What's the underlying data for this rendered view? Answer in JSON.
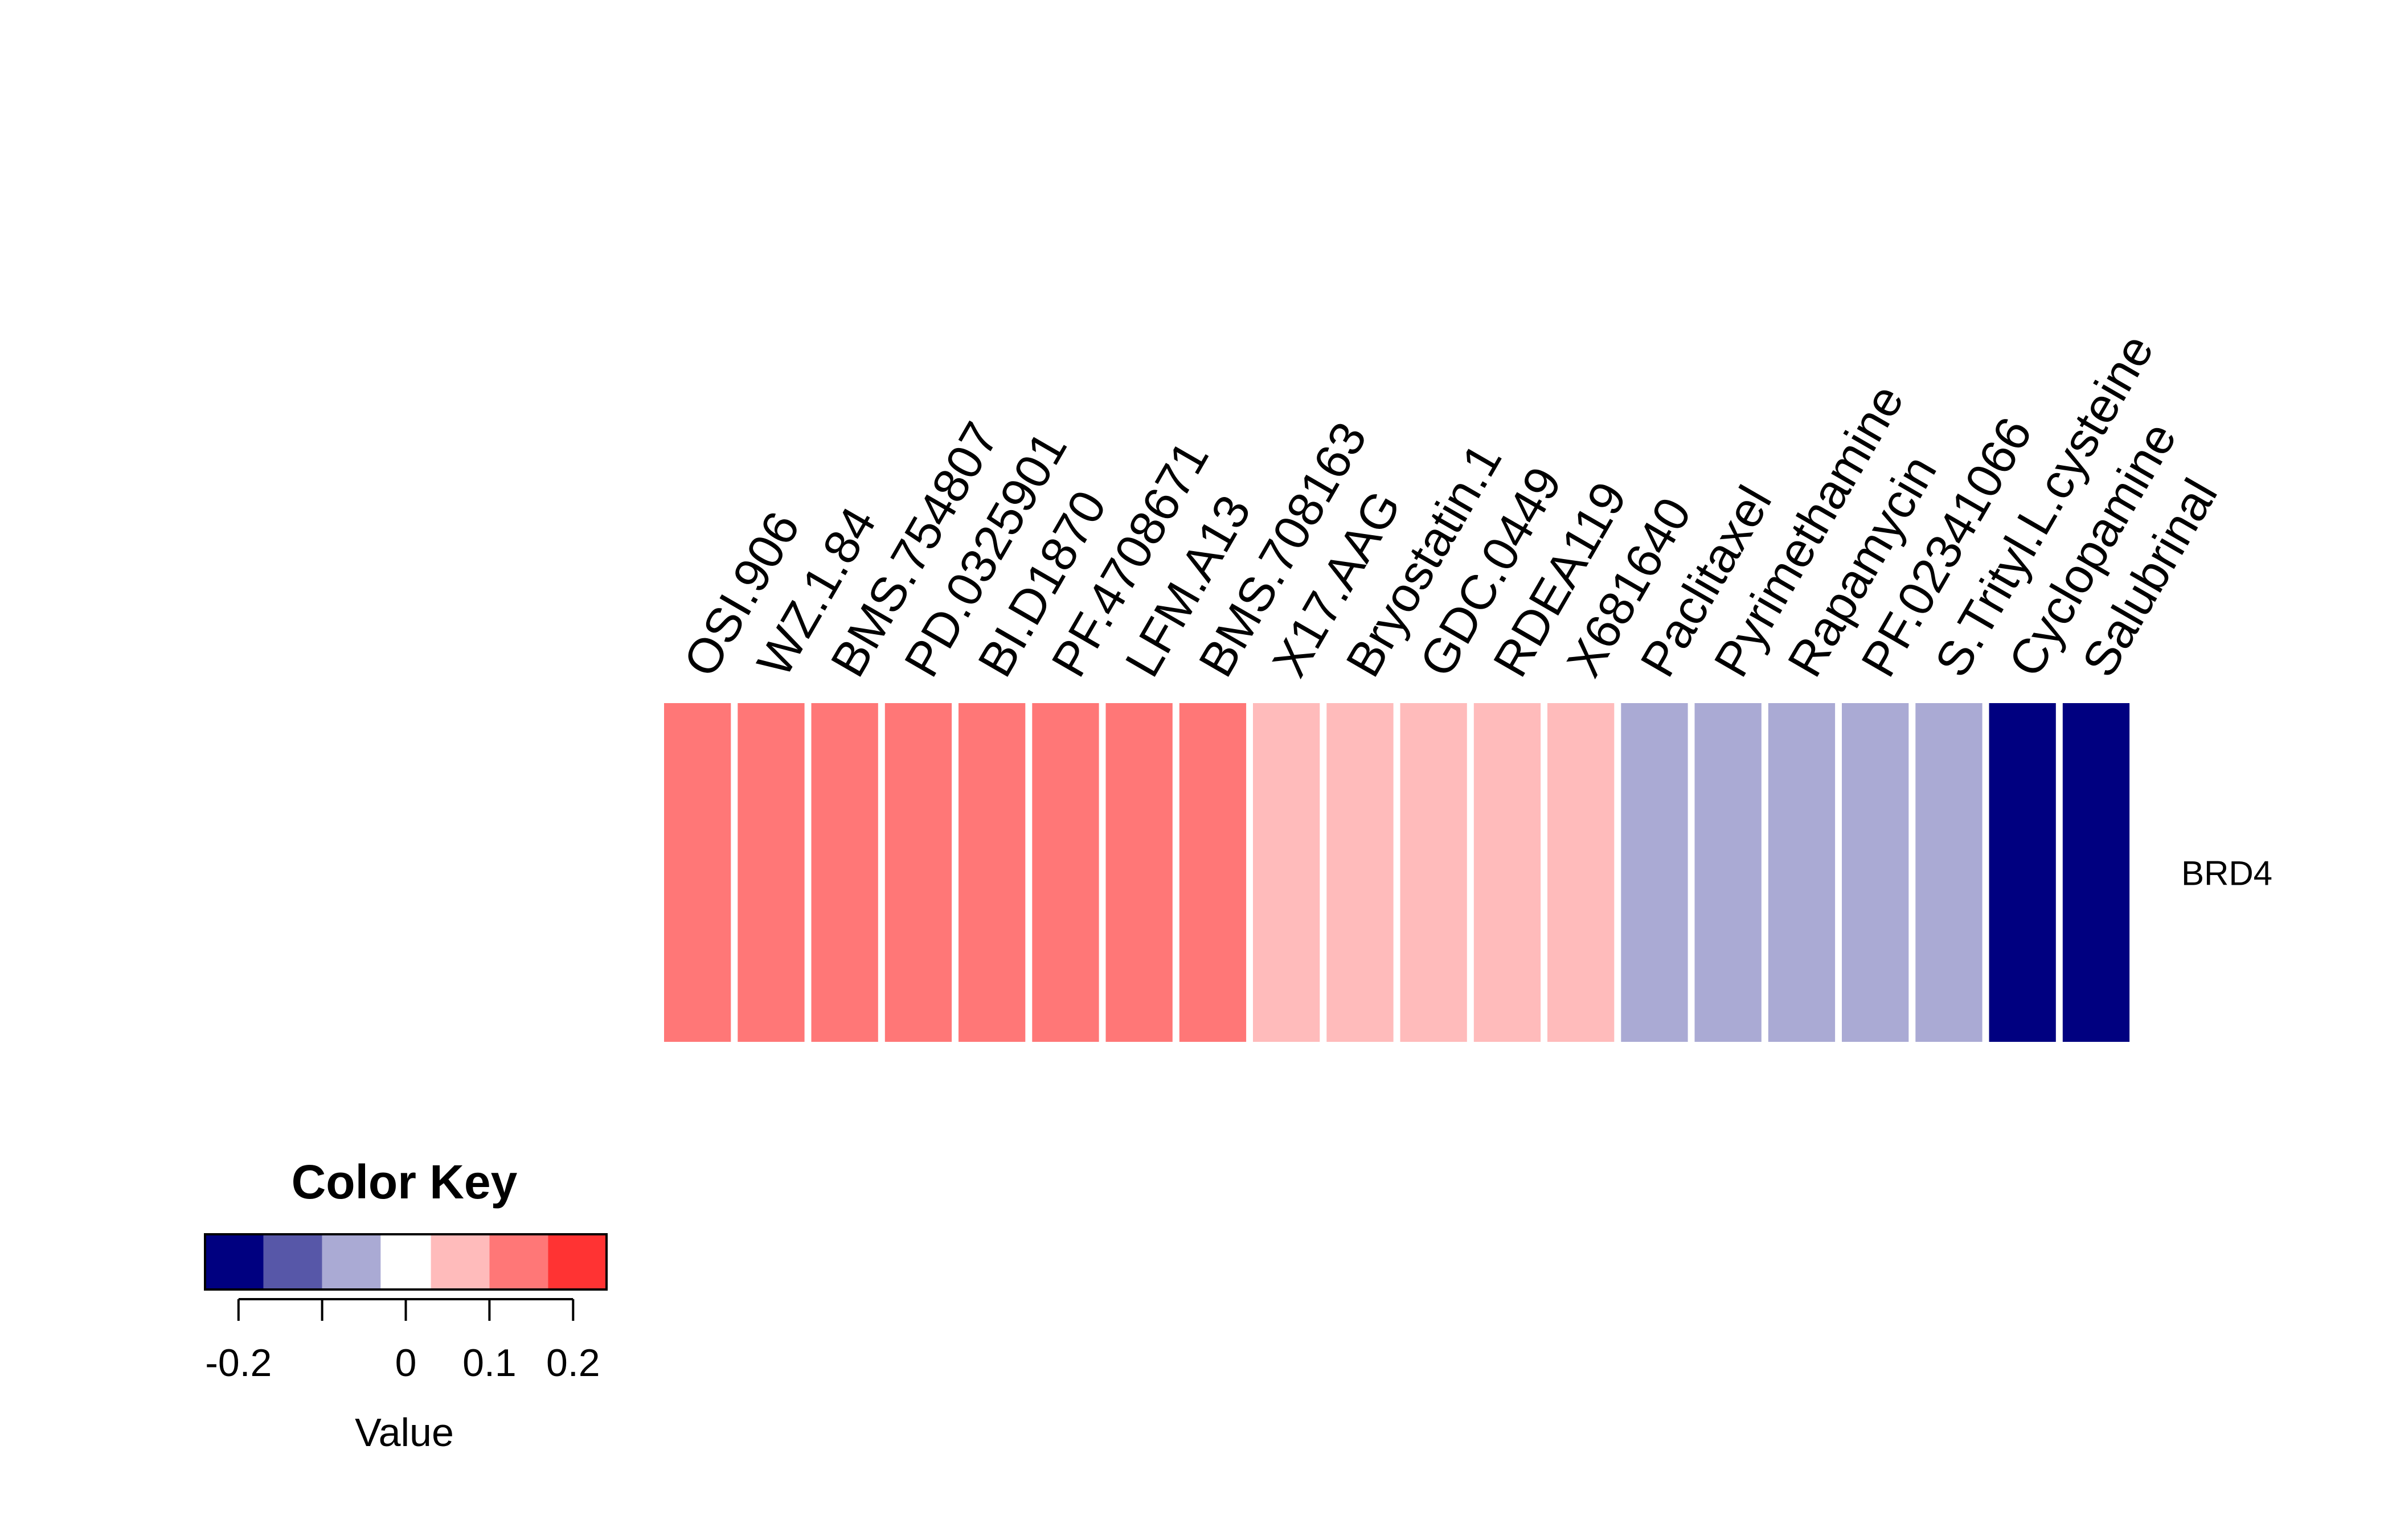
{
  "chart_data": {
    "type": "heatmap",
    "columns": [
      "OSI.906",
      "WZ.1.84",
      "BMS.754807",
      "PD.0325901",
      "BI.D1870",
      "PF.4708671",
      "LFM.A13",
      "BMS.708163",
      "X17.AAG",
      "Bryostatin.1",
      "GDC.0449",
      "RDEA119",
      "X681640",
      "Paclitaxel",
      "Pyrimethamine",
      "Rapamycin",
      "PF.02341066",
      "S.Trityl.L.cysteine",
      "Cyclopamine",
      "Salubrinal"
    ],
    "rows": [
      "BRD4"
    ],
    "values": [
      [
        0.1,
        0.1,
        0.1,
        0.1,
        0.1,
        0.1,
        0.1,
        0.1,
        0.05,
        0.05,
        0.05,
        0.05,
        0.05,
        -0.1,
        -0.1,
        -0.1,
        -0.1,
        -0.1,
        -0.2,
        -0.2
      ]
    ],
    "color_key": {
      "title": "Color Key",
      "xlabel": "Value",
      "breaks": [
        -0.24,
        -0.17,
        -0.1,
        -0.03,
        0.03,
        0.1,
        0.17,
        0.24
      ],
      "colors": [
        "#000080",
        "#5757a8",
        "#aaaad4",
        "#ffffff",
        "#ffbbbb",
        "#ff7777",
        "#ff3333"
      ],
      "ticks": [
        -0.2,
        -0.1,
        0,
        0.1,
        0.2
      ],
      "tick_labels": [
        "-0.2",
        "",
        "0",
        "0.1",
        "0.2"
      ]
    }
  }
}
